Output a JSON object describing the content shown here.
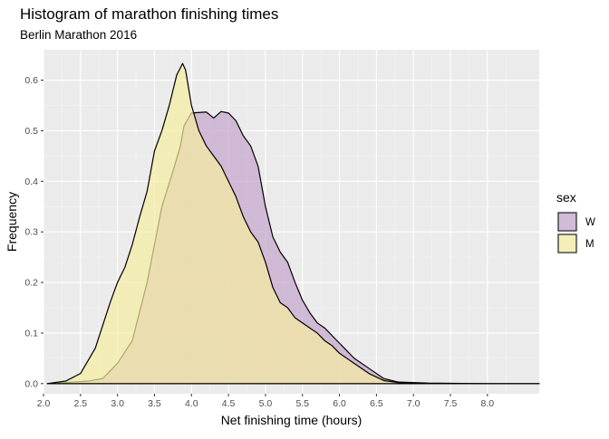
{
  "chart_data": {
    "type": "area",
    "title": "Histogram of marathon finishing times",
    "subtitle": "Berlin Marathon 2016",
    "xlabel": "Net finishing time (hours)",
    "ylabel": "Frequency",
    "xlim": [
      2.0,
      8.7
    ],
    "ylim": [
      -0.02,
      0.66
    ],
    "x_ticks": [
      "2.0",
      "2.5",
      "3.0",
      "3.5",
      "4.0",
      "4.5",
      "5.0",
      "5.5",
      "6.0",
      "6.5",
      "7.0",
      "7.5",
      "8.0"
    ],
    "y_ticks": [
      "0.0",
      "0.1",
      "0.2",
      "0.3",
      "0.4",
      "0.5",
      "0.6"
    ],
    "grid": true,
    "legend_title": "sex",
    "legend_position": "right",
    "series": [
      {
        "name": "W",
        "color": "#c4a4ca",
        "opacity": 0.7,
        "points": [
          [
            2.05,
            0.0
          ],
          [
            2.3,
            0.002
          ],
          [
            2.6,
            0.005
          ],
          [
            2.8,
            0.01
          ],
          [
            3.0,
            0.04
          ],
          [
            3.2,
            0.085
          ],
          [
            3.4,
            0.2
          ],
          [
            3.6,
            0.35
          ],
          [
            3.75,
            0.42
          ],
          [
            3.85,
            0.47
          ],
          [
            3.9,
            0.51
          ],
          [
            4.0,
            0.535
          ],
          [
            4.2,
            0.537
          ],
          [
            4.3,
            0.525
          ],
          [
            4.4,
            0.538
          ],
          [
            4.5,
            0.535
          ],
          [
            4.6,
            0.52
          ],
          [
            4.7,
            0.49
          ],
          [
            4.8,
            0.47
          ],
          [
            4.9,
            0.43
          ],
          [
            5.0,
            0.35
          ],
          [
            5.1,
            0.29
          ],
          [
            5.2,
            0.26
          ],
          [
            5.3,
            0.24
          ],
          [
            5.4,
            0.2
          ],
          [
            5.5,
            0.165
          ],
          [
            5.6,
            0.14
          ],
          [
            5.7,
            0.12
          ],
          [
            5.8,
            0.11
          ],
          [
            5.9,
            0.095
          ],
          [
            6.0,
            0.08
          ],
          [
            6.2,
            0.05
          ],
          [
            6.4,
            0.03
          ],
          [
            6.6,
            0.01
          ],
          [
            6.8,
            0.003
          ],
          [
            7.2,
            0.001
          ],
          [
            8.0,
            0.0
          ],
          [
            8.7,
            0.0
          ]
        ]
      },
      {
        "name": "M",
        "color": "#f5eda0",
        "opacity": 0.7,
        "points": [
          [
            2.05,
            0.0
          ],
          [
            2.3,
            0.005
          ],
          [
            2.5,
            0.02
          ],
          [
            2.7,
            0.07
          ],
          [
            2.9,
            0.16
          ],
          [
            3.0,
            0.2
          ],
          [
            3.1,
            0.23
          ],
          [
            3.2,
            0.275
          ],
          [
            3.3,
            0.33
          ],
          [
            3.4,
            0.38
          ],
          [
            3.5,
            0.46
          ],
          [
            3.6,
            0.5
          ],
          [
            3.7,
            0.55
          ],
          [
            3.8,
            0.61
          ],
          [
            3.88,
            0.633
          ],
          [
            3.92,
            0.62
          ],
          [
            4.0,
            0.55
          ],
          [
            4.1,
            0.5
          ],
          [
            4.2,
            0.47
          ],
          [
            4.3,
            0.45
          ],
          [
            4.4,
            0.43
          ],
          [
            4.5,
            0.4
          ],
          [
            4.6,
            0.37
          ],
          [
            4.7,
            0.33
          ],
          [
            4.8,
            0.3
          ],
          [
            4.9,
            0.28
          ],
          [
            5.0,
            0.24
          ],
          [
            5.1,
            0.19
          ],
          [
            5.2,
            0.16
          ],
          [
            5.3,
            0.15
          ],
          [
            5.4,
            0.13
          ],
          [
            5.5,
            0.12
          ],
          [
            5.6,
            0.11
          ],
          [
            5.7,
            0.1
          ],
          [
            5.8,
            0.085
          ],
          [
            5.9,
            0.075
          ],
          [
            6.0,
            0.06
          ],
          [
            6.2,
            0.04
          ],
          [
            6.4,
            0.02
          ],
          [
            6.6,
            0.006
          ],
          [
            6.8,
            0.002
          ],
          [
            7.2,
            0.0
          ],
          [
            8.7,
            0.0
          ]
        ]
      }
    ]
  }
}
